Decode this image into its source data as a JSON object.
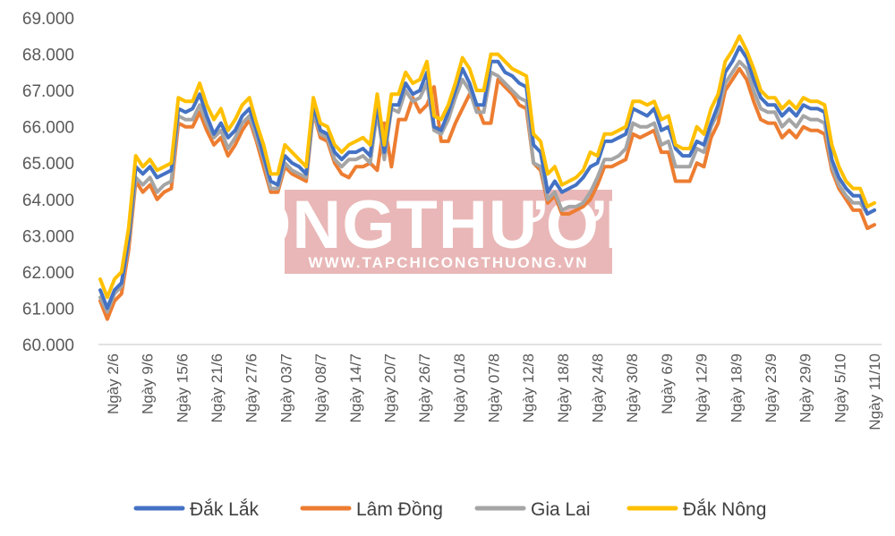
{
  "watermark": {
    "title": "CÔNGTHƯƠNG",
    "url": "WWW.TAPCHICONGTHUONG.VN",
    "color": "#e7b1b1"
  },
  "chart_data": {
    "type": "line",
    "ylim": [
      60000,
      69000
    ],
    "y_ticks": [
      "60.000",
      "61.000",
      "62.000",
      "63.000",
      "64.000",
      "65.000",
      "66.000",
      "67.000",
      "68.000",
      "69.000"
    ],
    "x_tick_labels": [
      "Ngày 2/6",
      "Ngày 9/6",
      "Ngày 15/6",
      "Ngày 21/6",
      "Ngày 27/6",
      "Ngày 03/7",
      "Ngày 08/7",
      "Ngày 14/7",
      "Ngày 20/7",
      "Ngày 26/7",
      "Ngày 01/8",
      "Ngày 07/8",
      "Ngày 12/8",
      "Ngày 18/8",
      "Ngày 24/8",
      "Ngày 30/8",
      "Ngày 6/9",
      "Ngày 12/9",
      "Ngày 18/9",
      "Ngày 23/9",
      "Ngày 29/9",
      "Ngày 5/10",
      "Ngày 11/10"
    ],
    "legend_position": "bottom",
    "grid": false,
    "series": [
      {
        "name": "Đắk Lắk",
        "color": "#4472c4",
        "values": [
          61500,
          61000,
          61500,
          61700,
          62900,
          64900,
          64700,
          64900,
          64600,
          64700,
          64800,
          66500,
          66400,
          66500,
          66900,
          66300,
          65800,
          66100,
          65700,
          65900,
          66300,
          66500,
          65900,
          65200,
          64500,
          64400,
          65200,
          65000,
          64900,
          64700,
          66600,
          65900,
          65800,
          65300,
          65100,
          65300,
          65300,
          65400,
          65200,
          66600,
          65300,
          66600,
          66600,
          67200,
          66900,
          67000,
          67500,
          66000,
          65900,
          66400,
          67000,
          67600,
          67200,
          66600,
          66600,
          67800,
          67800,
          67500,
          67400,
          67200,
          67100,
          65500,
          65300,
          64200,
          64500,
          64200,
          64300,
          64400,
          64600,
          64900,
          65000,
          65600,
          65600,
          65700,
          65800,
          66500,
          66400,
          66300,
          66500,
          65900,
          66000,
          65400,
          65200,
          65200,
          65600,
          65500,
          66100,
          66600,
          67500,
          67800,
          68200,
          67900,
          67300,
          66800,
          66600,
          66600,
          66300,
          66500,
          66300,
          66600,
          66500,
          66500,
          66400,
          65100,
          64600,
          64300,
          64100,
          64100,
          63600,
          63700
        ]
      },
      {
        "name": "Lâm Đồng",
        "color": "#ed7d31",
        "values": [
          61200,
          60700,
          61200,
          61400,
          62600,
          64500,
          64200,
          64400,
          64000,
          64200,
          64300,
          66100,
          66000,
          66000,
          66400,
          65900,
          65500,
          65700,
          65200,
          65500,
          65900,
          66200,
          65600,
          64900,
          64200,
          64200,
          64900,
          64700,
          64600,
          64500,
          66400,
          65700,
          65600,
          65000,
          64700,
          64600,
          64900,
          64900,
          65000,
          64800,
          66100,
          64900,
          66200,
          66200,
          66800,
          66400,
          66600,
          67100,
          65600,
          65600,
          66100,
          66500,
          66900,
          66600,
          66100,
          66100,
          67300,
          67100,
          66900,
          66600,
          66500,
          65000,
          64800,
          63900,
          64100,
          63600,
          63600,
          63700,
          63800,
          64000,
          64400,
          64900,
          64900,
          65000,
          65100,
          65800,
          65700,
          65800,
          65900,
          65300,
          65300,
          64500,
          64500,
          64500,
          65000,
          64900,
          65700,
          66100,
          67000,
          67300,
          67600,
          67300,
          66700,
          66200,
          66100,
          66100,
          65700,
          65900,
          65700,
          66000,
          65900,
          65900,
          65800,
          64800,
          64300,
          64000,
          63700,
          63700,
          63200,
          63300
        ]
      },
      {
        "name": "Gia Lai",
        "color": "#a5a5a5",
        "values": [
          61300,
          60900,
          61400,
          61600,
          62800,
          64600,
          64400,
          64600,
          64200,
          64400,
          64500,
          66300,
          66200,
          66200,
          66600,
          66100,
          65700,
          65900,
          65400,
          65700,
          66100,
          66300,
          65700,
          65100,
          64300,
          64300,
          65000,
          64800,
          64700,
          64600,
          66400,
          65800,
          65700,
          65100,
          64900,
          65100,
          65100,
          65200,
          65000,
          66400,
          65100,
          66500,
          66400,
          67000,
          66700,
          66800,
          67200,
          65900,
          65800,
          66200,
          66800,
          67300,
          67000,
          66400,
          66400,
          67500,
          67400,
          67200,
          67000,
          66800,
          66700,
          65000,
          64900,
          64000,
          64200,
          63700,
          63800,
          63800,
          63900,
          64200,
          64600,
          65100,
          65100,
          65200,
          65400,
          66100,
          66000,
          66000,
          66100,
          65500,
          65600,
          64900,
          64900,
          64900,
          65400,
          65300,
          66000,
          66400,
          67200,
          67500,
          67800,
          67600,
          67000,
          66500,
          66400,
          66400,
          66000,
          66200,
          66000,
          66300,
          66200,
          66200,
          66100,
          64900,
          64400,
          64100,
          63900,
          63900,
          63600,
          63700
        ]
      },
      {
        "name": "Đắk Nông",
        "color": "#ffc000",
        "values": [
          61800,
          61300,
          61800,
          62000,
          63200,
          65200,
          64900,
          65100,
          64800,
          64900,
          65000,
          66800,
          66700,
          66700,
          67200,
          66600,
          66200,
          66500,
          65900,
          66200,
          66600,
          66800,
          66100,
          65500,
          64700,
          64700,
          65500,
          65300,
          65100,
          64900,
          66800,
          66100,
          66000,
          65500,
          65300,
          65500,
          65600,
          65700,
          65500,
          66900,
          65500,
          66900,
          66900,
          67500,
          67200,
          67300,
          67800,
          66300,
          66200,
          66600,
          67200,
          67900,
          67600,
          67000,
          67000,
          68000,
          68000,
          67800,
          67600,
          67500,
          67400,
          65800,
          65600,
          64700,
          64900,
          64400,
          64500,
          64600,
          64800,
          65300,
          65200,
          65800,
          65800,
          65900,
          66000,
          66700,
          66700,
          66600,
          66700,
          66200,
          66300,
          65500,
          65400,
          65400,
          66000,
          65800,
          66500,
          66900,
          67800,
          68100,
          68500,
          68100,
          67600,
          67000,
          66800,
          66800,
          66500,
          66700,
          66500,
          66800,
          66700,
          66700,
          66600,
          65500,
          64900,
          64500,
          64300,
          64300,
          63800,
          63900
        ]
      }
    ]
  }
}
